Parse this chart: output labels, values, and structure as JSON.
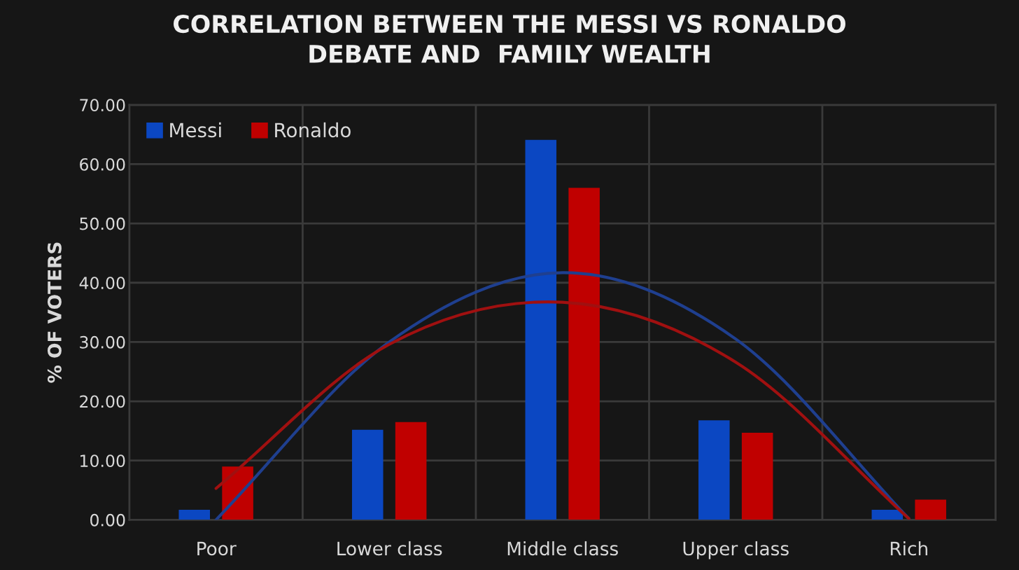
{
  "chart_data": {
    "type": "bar",
    "title": "CORRELATION BETWEEN THE MESSI VS RONALDO\nDEBATE AND  FAMILY WEALTH",
    "ylabel": "% OF VOTERS",
    "categories": [
      "Poor",
      "Lower class",
      "Middle class",
      "Upper class",
      "Rich"
    ],
    "series": [
      {
        "name": "Messi",
        "color": "#0b47c2",
        "values": [
          1.7,
          15.2,
          64.1,
          16.8,
          1.7
        ]
      },
      {
        "name": "Ronaldo",
        "color": "#c00000",
        "values": [
          9.0,
          16.5,
          56.0,
          14.7,
          3.4
        ]
      },
      {
        "type": "line",
        "color": "#1f3f8f",
        "values": [
          0.0,
          30.0,
          41.7,
          30.5,
          0.2
        ]
      },
      {
        "type": "line",
        "color": "#a01010",
        "values": [
          5.3,
          29.6,
          36.7,
          26.6,
          0.2
        ]
      }
    ],
    "ylim": [
      0,
      70
    ],
    "yticks": [
      {
        "value": 0,
        "label": "0.00"
      },
      {
        "value": 10,
        "label": "10.00"
      },
      {
        "value": 20,
        "label": "20.00"
      },
      {
        "value": 30,
        "label": "30.00"
      },
      {
        "value": 40,
        "label": "40.00"
      },
      {
        "value": 50,
        "label": "50.00"
      },
      {
        "value": 60,
        "label": "60.00"
      },
      {
        "value": 70,
        "label": "70.00"
      }
    ],
    "grid": true,
    "legend": "top left"
  }
}
